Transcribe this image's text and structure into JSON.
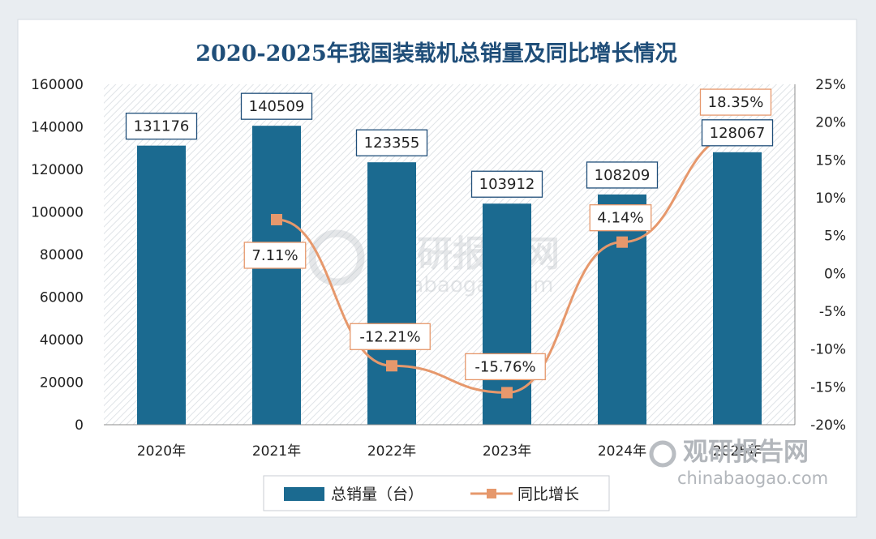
{
  "chart_data": {
    "type": "bar+line",
    "title": "2020-2025年我国装载机总销量及同比增长情况",
    "categories": [
      "2020年",
      "2021年",
      "2022年",
      "2023年",
      "2024年",
      "2025年"
    ],
    "series": [
      {
        "name": "总销量（台）",
        "type": "bar",
        "axis": "left",
        "values": [
          131176,
          140509,
          123355,
          103912,
          108209,
          128067
        ],
        "labels": [
          "131176",
          "140509",
          "123355",
          "103912",
          "108209",
          "128067"
        ]
      },
      {
        "name": "同比增长",
        "type": "line",
        "axis": "right",
        "values": [
          null,
          7.11,
          -12.21,
          -15.76,
          4.14,
          18.35
        ],
        "labels": [
          "",
          "7.11%",
          "-12.21%",
          "-15.76%",
          "4.14%",
          "18.35%"
        ]
      }
    ],
    "ylim_left": [
      0,
      160000
    ],
    "yticks_left": [
      "160000",
      "140000",
      "120000",
      "100000",
      "80000",
      "60000",
      "40000",
      "20000",
      "0"
    ],
    "ylim_right": [
      -20,
      25
    ],
    "yticks_right": [
      "25%",
      "20%",
      "15%",
      "10%",
      "5%",
      "0%",
      "-5%",
      "-10%",
      "-15%",
      "-20%"
    ],
    "legend": [
      "总销量（台）",
      "同比增长"
    ],
    "legend_position": "bottom"
  },
  "colors": {
    "bar": "#1b6a90",
    "line": "#e6986c",
    "title": "#1f4e79"
  },
  "watermark": {
    "brand": "观研报告网",
    "url": "chinabaogao.com"
  }
}
